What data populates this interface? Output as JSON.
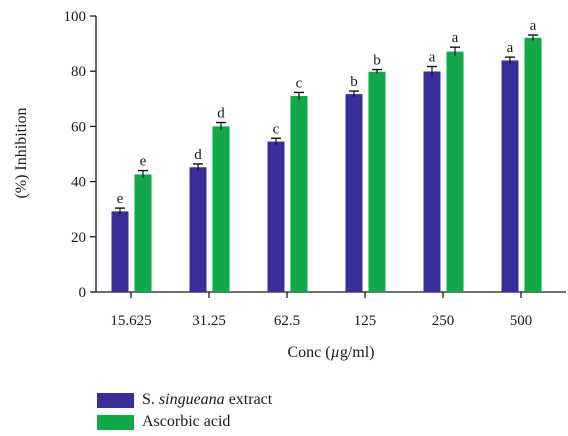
{
  "chart_data": {
    "type": "bar",
    "categories": [
      "15.625",
      "31.25",
      "62.5",
      "125",
      "250",
      "500"
    ],
    "series": [
      {
        "name": "S. singueana extract",
        "name_plain": "S. ",
        "name_italic": "singueana",
        "name_suffix": " extract",
        "color": "#3a2f9a",
        "values": [
          29.2,
          45.2,
          54.5,
          71.7,
          79.9,
          83.9
        ],
        "errors": [
          1.2,
          1.2,
          1.2,
          1.1,
          1.8,
          1.2
        ],
        "letters": [
          "e",
          "d",
          "c",
          "b",
          "a",
          "a"
        ]
      },
      {
        "name": "Ascorbic acid",
        "color": "#12a84a",
        "values": [
          42.6,
          60.0,
          71.0,
          79.8,
          87.1,
          92.1
        ],
        "errors": [
          1.4,
          1.4,
          1.3,
          0.8,
          1.6,
          1.0
        ],
        "letters": [
          "e",
          "d",
          "c",
          "b",
          "a",
          "a"
        ]
      }
    ],
    "xlabel": "Conc (µg/ml)",
    "ylabel": "(%) Inhibition",
    "ylim": [
      0,
      100
    ],
    "yticks": [
      "0",
      "20",
      "40",
      "60",
      "80",
      "100"
    ],
    "legend_position": "bottom-left"
  }
}
